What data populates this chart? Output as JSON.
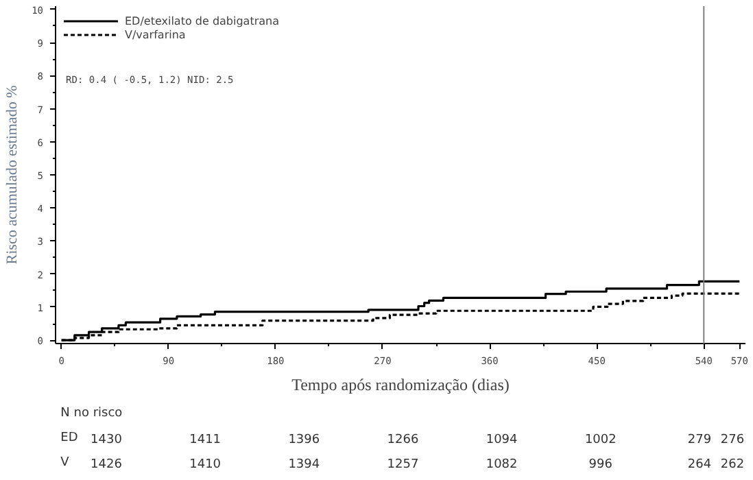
{
  "chart_data": {
    "type": "step",
    "xlabel": "Tempo após randomização (dias)",
    "ylabel": "Risco acumulado estimado %",
    "xlim": [
      -5,
      575
    ],
    "ylim": [
      -0.1,
      10.1
    ],
    "xticks": [
      0,
      90,
      180,
      270,
      360,
      450,
      540,
      570
    ],
    "yticks": [
      0,
      1,
      2,
      3,
      4,
      5,
      6,
      7,
      8,
      9,
      10
    ],
    "grid": false,
    "legend": "top left",
    "series": [
      {
        "name": "ED/etexilato de dabigatrana",
        "color": "#000000",
        "line_style": "solid",
        "x": [
          0,
          11,
          23,
          34,
          48,
          54,
          83,
          97,
          117,
          129,
          258,
          300,
          305,
          309,
          321,
          407,
          424,
          458,
          509,
          536,
          570
        ],
        "values": [
          0,
          0.15,
          0.25,
          0.36,
          0.45,
          0.54,
          0.65,
          0.72,
          0.78,
          0.86,
          0.92,
          1.03,
          1.13,
          1.2,
          1.28,
          1.4,
          1.47,
          1.56,
          1.67,
          1.78,
          1.78
        ]
      },
      {
        "name": "V/varfarina",
        "color": "#000000",
        "line_style": "dashed",
        "x": [
          0,
          11,
          23,
          34,
          48,
          81,
          97,
          169,
          262,
          276,
          300,
          315,
          447,
          459,
          472,
          489,
          513,
          522,
          570
        ],
        "values": [
          0,
          0.07,
          0.15,
          0.25,
          0.33,
          0.36,
          0.45,
          0.59,
          0.67,
          0.77,
          0.81,
          0.89,
          1.01,
          1.1,
          1.19,
          1.28,
          1.35,
          1.41,
          1.41
        ]
      }
    ],
    "ref_lines": [
      {
        "axis": "x",
        "value": 540,
        "color": "#808080"
      }
    ],
    "annotations": [
      "RD: 0.4 ( -0.5,   1.2)   NID: 2.5",
      "N no risco",
      "ED",
      "1430",
      "1411",
      "1396",
      "1266",
      "1094",
      "1002",
      "279",
      "276",
      "V",
      "1426",
      "1410",
      "1394",
      "1257",
      "1082",
      "996",
      "264",
      "262"
    ]
  }
}
